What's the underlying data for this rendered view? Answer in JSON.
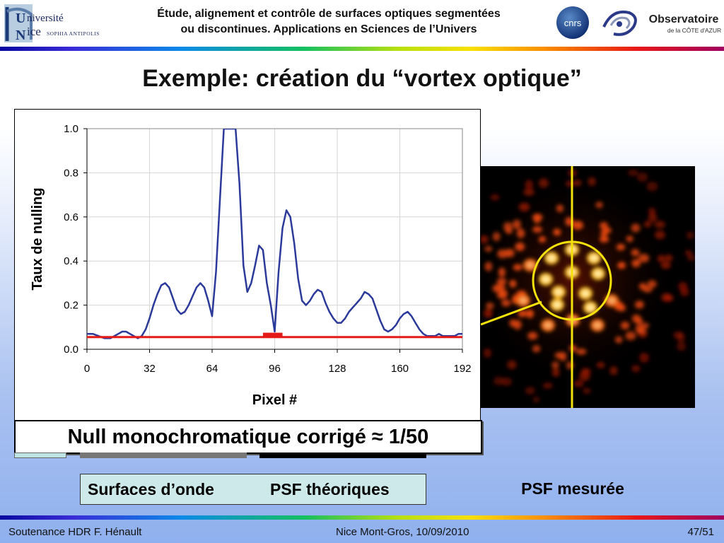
{
  "header": {
    "title_line1": "Étude, alignement et contrôle de surfaces optiques segmentées",
    "title_line2": "ou discontinues. Applications en Sciences de l’Univers",
    "logo_univ_line1": "niversité",
    "logo_univ_line2": "ice",
    "logo_univ_sub": "SOPHIA ANTIPOLIS",
    "logo_cnrs": "cnrs",
    "logo_obs_line1": "Observatoire",
    "logo_obs_line2": "de la CÔTE d'AZUR"
  },
  "slide": {
    "title": "Exemple: création du “vortex optique”",
    "null_caption": "Null monochromatique corrigé ≈ 1/50",
    "label_surfaces": "Surfaces d’onde",
    "label_psf_theo": "PSF théoriques",
    "label_psf_mes": "PSF mesurée"
  },
  "chart_data": {
    "type": "line",
    "xlabel": "Pixel #",
    "ylabel": "Taux de nulling",
    "xlim": [
      0,
      192
    ],
    "ylim": [
      0,
      1.0
    ],
    "xticks": [
      "0",
      "32",
      "64",
      "96",
      "128",
      "160",
      "192"
    ],
    "yticks": [
      "0.0",
      "0.2",
      "0.4",
      "0.6",
      "0.8",
      "1.0"
    ],
    "grid": true,
    "series": [
      {
        "color": "#2b3a9a",
        "x": [
          0,
          3,
          6,
          9,
          12,
          14,
          16,
          18,
          20,
          22,
          24,
          26,
          28,
          30,
          32,
          34,
          36,
          38,
          40,
          42,
          44,
          46,
          48,
          50,
          52,
          54,
          56,
          58,
          60,
          62,
          64,
          66,
          68,
          70,
          72,
          74,
          76,
          78,
          80,
          82,
          84,
          86,
          88,
          90,
          92,
          94,
          96,
          98,
          100,
          102,
          104,
          106,
          108,
          110,
          112,
          114,
          116,
          118,
          120,
          122,
          124,
          126,
          128,
          130,
          132,
          134,
          136,
          138,
          140,
          142,
          144,
          146,
          148,
          150,
          152,
          154,
          156,
          158,
          160,
          162,
          164,
          166,
          168,
          170,
          172,
          174,
          176,
          178,
          180,
          182,
          184,
          186,
          188,
          190,
          192
        ],
        "y": [
          0.07,
          0.07,
          0.06,
          0.05,
          0.05,
          0.06,
          0.07,
          0.08,
          0.08,
          0.07,
          0.06,
          0.05,
          0.06,
          0.09,
          0.14,
          0.2,
          0.25,
          0.29,
          0.3,
          0.28,
          0.23,
          0.18,
          0.16,
          0.17,
          0.2,
          0.24,
          0.28,
          0.3,
          0.28,
          0.22,
          0.15,
          0.35,
          0.68,
          1.0,
          1.0,
          1.0,
          1.0,
          0.75,
          0.38,
          0.26,
          0.3,
          0.38,
          0.47,
          0.45,
          0.3,
          0.2,
          0.08,
          0.35,
          0.55,
          0.63,
          0.6,
          0.48,
          0.32,
          0.22,
          0.2,
          0.22,
          0.25,
          0.27,
          0.26,
          0.21,
          0.17,
          0.14,
          0.12,
          0.12,
          0.14,
          0.17,
          0.19,
          0.21,
          0.23,
          0.26,
          0.25,
          0.23,
          0.18,
          0.13,
          0.09,
          0.08,
          0.09,
          0.11,
          0.14,
          0.16,
          0.17,
          0.15,
          0.12,
          0.09,
          0.07,
          0.06,
          0.06,
          0.06,
          0.07,
          0.06,
          0.06,
          0.06,
          0.06,
          0.07,
          0.07
        ]
      },
      {
        "color": "#e41b17",
        "x": [
          0,
          192
        ],
        "y": [
          0.055,
          0.055
        ]
      }
    ],
    "annotations": [
      {
        "type": "box",
        "x": [
          90,
          100
        ],
        "y": [
          0.055,
          0.075
        ],
        "color": "#e41b17"
      }
    ]
  },
  "footer": {
    "left": "Soutenance HDR F. Hénault",
    "center": "Nice Mont-Gros, 10/09/2010",
    "right": "47/51"
  }
}
